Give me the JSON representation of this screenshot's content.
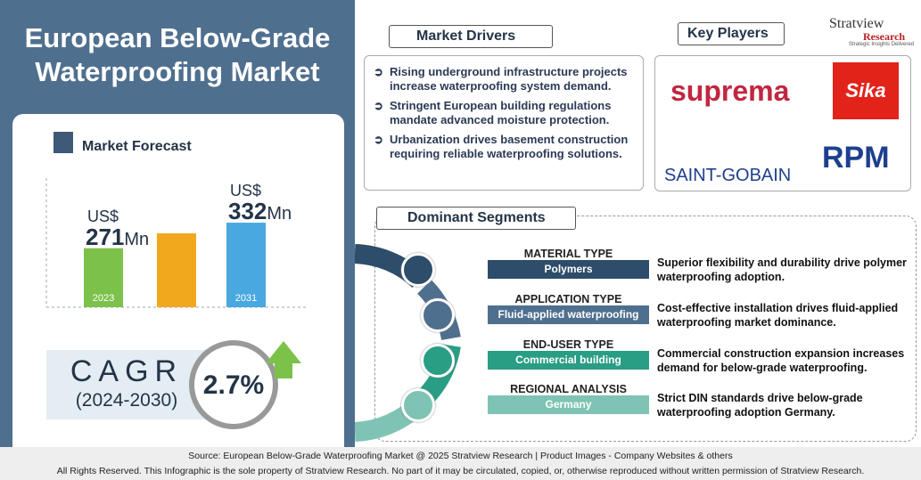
{
  "title": "European Below-Grade Waterproofing Market",
  "forecast": {
    "heading": "Market Forecast",
    "currency": "US$",
    "unit": "Mn",
    "bars": [
      {
        "year": "2023",
        "value": 271
      },
      {
        "year": "2031",
        "value": 332
      }
    ]
  },
  "cagr": {
    "label": "CAGR",
    "period": "(2024-2030)",
    "value": "2.7%"
  },
  "drivers": {
    "heading": "Market Drivers",
    "items": [
      "Rising underground infrastructure projects increase waterproofing system demand.",
      "Stringent European building regulations mandate advanced moisture protection.",
      "Urbanization drives basement construction requiring reliable waterproofing solutions."
    ]
  },
  "players": {
    "heading": "Key Players",
    "logos": [
      "suprema",
      "Sika",
      "SAINT-GOBAIN",
      "RPM"
    ]
  },
  "brand": {
    "name": "Stratview",
    "sub": "Research",
    "tagline": "Strategic Insights Delivered"
  },
  "segments": {
    "heading": "Dominant Segments",
    "items": [
      {
        "type": "MATERIAL TYPE",
        "value": "Polymers",
        "text": "Superior flexibility and durability drive polymer waterproofing adoption."
      },
      {
        "type": "APPLICATION TYPE",
        "value": "Fluid-applied waterproofing",
        "text": "Cost-effective installation drives fluid-applied waterproofing market dominance."
      },
      {
        "type": "END-USER TYPE",
        "value": "Commercial building",
        "text": "Commercial construction expansion increases demand for below-grade waterproofing."
      },
      {
        "type": "REGIONAL ANALYSIS",
        "value": "Germany",
        "text": "Strict DIN standards drive below-grade waterproofing adoption Germany."
      }
    ]
  },
  "footer": {
    "source": "Source:  European Below-Grade Waterproofing Market @ 2025 Stratview Research | Product Images  - Company Websites & others",
    "rights": "All Rights Reserved. This Infographic is the sole property of Stratview Research. No part of it may be circulated, copied, or, otherwise reproduced without written permission of Stratview Research."
  }
}
